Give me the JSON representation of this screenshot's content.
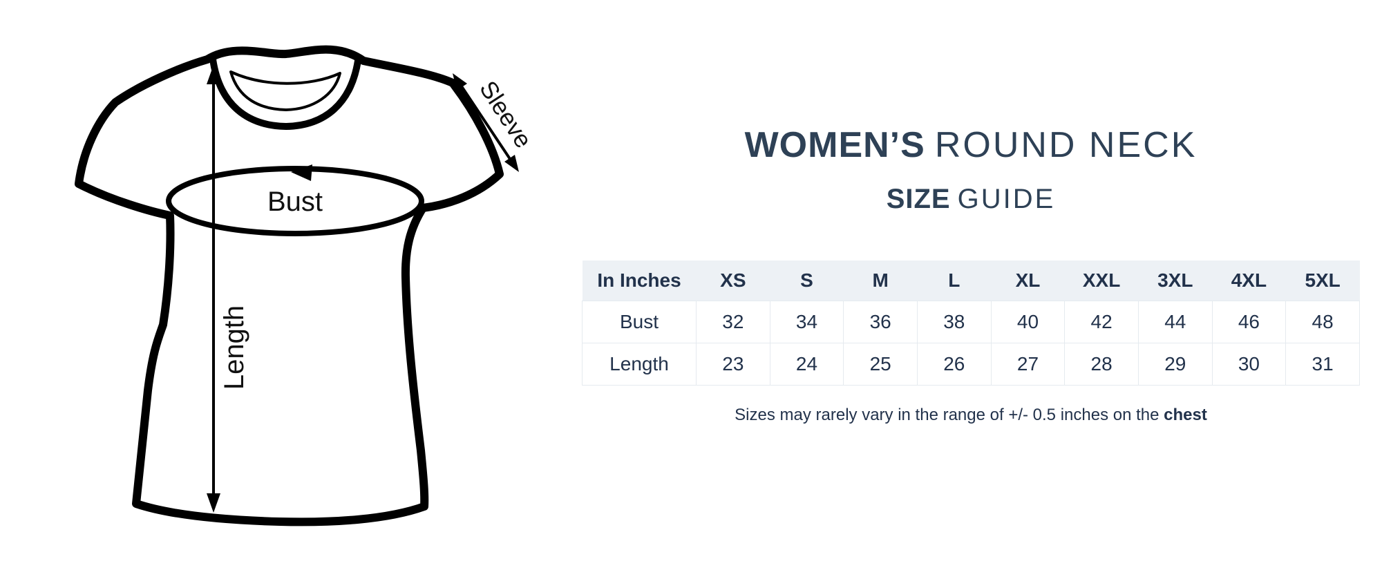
{
  "header": {
    "title_bold": "WOMEN’S",
    "title_light": "ROUND NECK",
    "subtitle_bold": "SIZE",
    "subtitle_light": "GUIDE"
  },
  "diagram": {
    "bust_label": "Bust",
    "length_label": "Length",
    "sleeve_label": "Sleeve"
  },
  "chart_data": {
    "type": "table",
    "title": "WOMEN’S ROUND NECK SIZE GUIDE",
    "unit_header": "In Inches",
    "columns": [
      "In Inches",
      "XS",
      "S",
      "M",
      "L",
      "XL",
      "XXL",
      "3XL",
      "4XL",
      "5XL"
    ],
    "rows": [
      {
        "label": "Bust",
        "values": [
          "32",
          "34",
          "36",
          "38",
          "40",
          "42",
          "44",
          "46",
          "48"
        ]
      },
      {
        "label": "Length",
        "values": [
          "23",
          "24",
          "25",
          "26",
          "27",
          "28",
          "29",
          "30",
          "31"
        ]
      }
    ]
  },
  "footnote": {
    "text_before": "Sizes may rarely vary in the range of +/- 0.5 inches on the ",
    "emphasis": "chest"
  },
  "colors": {
    "navy_title": "#2e4156",
    "table_text": "#22324b",
    "header_row_bg": "#edf1f5",
    "table_border": "#e5eaef",
    "diagram_ink": "#000000"
  }
}
